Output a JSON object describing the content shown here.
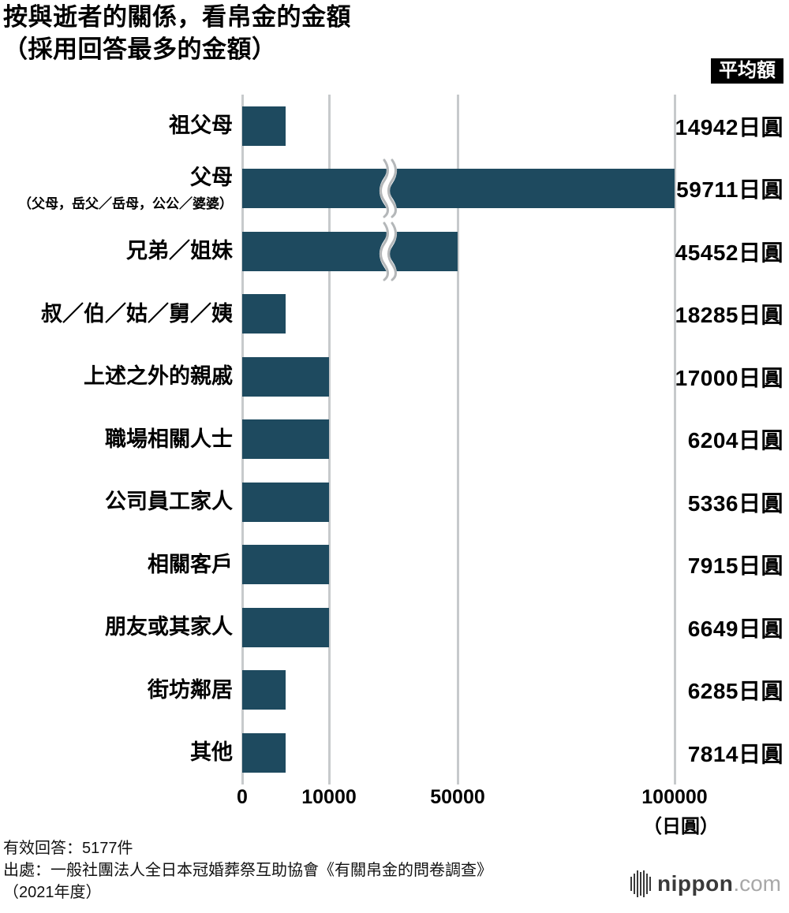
{
  "title": {
    "line1": "按與逝者的關係，看帛金的金額",
    "line2": "（採用回答最多的金額）"
  },
  "badge": "平均額",
  "chart_data": {
    "type": "bar",
    "orientation": "horizontal",
    "bar_color": "#1e4a5f",
    "unit_label": "（日圓）",
    "axis_note": "non-linear x scale with axis break between 10000 and 50000",
    "axis_ticks": [
      {
        "value": 0,
        "label": "0"
      },
      {
        "value": 10000,
        "label": "10000"
      },
      {
        "value": 50000,
        "label": "50000"
      },
      {
        "value": 100000,
        "label": "100000"
      }
    ],
    "rows": [
      {
        "label": "祖父母",
        "sublabel": "",
        "mode_value": 5000,
        "avg_label": "14942日圓",
        "axis_break": false
      },
      {
        "label": "父母",
        "sublabel": "（父母，岳父／岳母，公公／婆婆）",
        "mode_value": 100000,
        "avg_label": "59711日圓",
        "axis_break": true
      },
      {
        "label": "兄弟／姐妹",
        "sublabel": "",
        "mode_value": 50000,
        "avg_label": "45452日圓",
        "axis_break": true
      },
      {
        "label": "叔／伯／姑／舅／姨",
        "sublabel": "",
        "mode_value": 5000,
        "avg_label": "18285日圓",
        "axis_break": false
      },
      {
        "label": "上述之外的親戚",
        "sublabel": "",
        "mode_value": 10000,
        "avg_label": "17000日圓",
        "axis_break": false
      },
      {
        "label": "職場相關人士",
        "sublabel": "",
        "mode_value": 10000,
        "avg_label": "6204日圓",
        "axis_break": false
      },
      {
        "label": "公司員工家人",
        "sublabel": "",
        "mode_value": 10000,
        "avg_label": "5336日圓",
        "axis_break": false
      },
      {
        "label": "相關客戶",
        "sublabel": "",
        "mode_value": 10000,
        "avg_label": "7915日圓",
        "axis_break": false
      },
      {
        "label": "朋友或其家人",
        "sublabel": "",
        "mode_value": 10000,
        "avg_label": "6649日圓",
        "axis_break": false
      },
      {
        "label": "街坊鄰居",
        "sublabel": "",
        "mode_value": 5000,
        "avg_label": "6285日圓",
        "axis_break": false
      },
      {
        "label": "其他",
        "sublabel": "",
        "mode_value": 5000,
        "avg_label": "7814日圓",
        "axis_break": false
      }
    ]
  },
  "footer": {
    "line1": "有效回答：5177件",
    "line2": "出處：一般社團法人全日本冠婚葬祭互助協會《有關帛金的問卷調查》",
    "line3": "（2021年度）"
  },
  "logo": {
    "name": "nippon",
    "tld": ".com"
  }
}
